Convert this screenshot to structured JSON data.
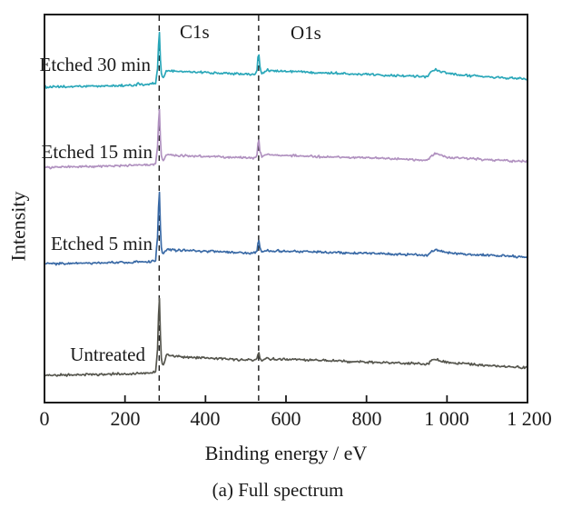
{
  "figure": {
    "caption": "(a) Full spectrum"
  },
  "chart_data": {
    "type": "line",
    "title": "",
    "xlabel": "Binding energy / eV",
    "ylabel": "Intensity",
    "xlim": [
      0,
      1200
    ],
    "ylim_relative": [
      0,
      100
    ],
    "grid": false,
    "y_ticks_shown": false,
    "x_ticks": [
      0,
      200,
      400,
      600,
      800,
      1000,
      1200
    ],
    "x_tick_labels": [
      "0",
      "200",
      "400",
      "600",
      "800",
      "1 000",
      "1 200"
    ],
    "legend_position": "inline labels left of C1s peak",
    "axis_color": "#1a1a1a",
    "marker_line_color": "#1a1a1a",
    "noise_amplitude": 0.18,
    "annotations": [
      {
        "label": "C1s",
        "x_eV": 285,
        "style": "vertical-dashed-line"
      },
      {
        "label": "O1s",
        "x_eV": 532,
        "style": "vertical-dashed-line"
      }
    ],
    "series": [
      {
        "name": "Etched 30 min",
        "color": "#2aa7b9",
        "points": [
          [
            0,
            81.3
          ],
          [
            60,
            81.4
          ],
          [
            150,
            81.6
          ],
          [
            228,
            81.8
          ],
          [
            233,
            82.4
          ],
          [
            238,
            81.9
          ],
          [
            262,
            82.1
          ],
          [
            276,
            82.3
          ],
          [
            281,
            86.0
          ],
          [
            285,
            97.2
          ],
          [
            288,
            88.0
          ],
          [
            291,
            84.2
          ],
          [
            296,
            83.6
          ],
          [
            303,
            85.6
          ],
          [
            320,
            85.4
          ],
          [
            420,
            85.0
          ],
          [
            500,
            84.6
          ],
          [
            524,
            84.5
          ],
          [
            528,
            85.8
          ],
          [
            532,
            91.0
          ],
          [
            535,
            86.6
          ],
          [
            540,
            84.9
          ],
          [
            553,
            85.7
          ],
          [
            565,
            85.5
          ],
          [
            650,
            85.2
          ],
          [
            750,
            84.8
          ],
          [
            850,
            84.4
          ],
          [
            930,
            84.1
          ],
          [
            952,
            84.0
          ],
          [
            963,
            85.5
          ],
          [
            973,
            85.8
          ],
          [
            987,
            85.2
          ],
          [
            1005,
            84.7
          ],
          [
            1060,
            84.2
          ],
          [
            1120,
            83.8
          ],
          [
            1200,
            83.4
          ]
        ]
      },
      {
        "name": "Etched 15 min",
        "color": "#b192c0",
        "points": [
          [
            0,
            60.6
          ],
          [
            150,
            60.9
          ],
          [
            262,
            61.2
          ],
          [
            276,
            61.5
          ],
          [
            281,
            66.0
          ],
          [
            285,
            77.5
          ],
          [
            288,
            68.0
          ],
          [
            291,
            62.9
          ],
          [
            296,
            62.4
          ],
          [
            303,
            63.9
          ],
          [
            320,
            63.7
          ],
          [
            420,
            63.4
          ],
          [
            500,
            63.1
          ],
          [
            524,
            63.0
          ],
          [
            528,
            64.1
          ],
          [
            532,
            68.8
          ],
          [
            535,
            64.9
          ],
          [
            540,
            63.2
          ],
          [
            553,
            64.0
          ],
          [
            565,
            63.8
          ],
          [
            650,
            63.5
          ],
          [
            750,
            63.2
          ],
          [
            850,
            62.9
          ],
          [
            930,
            62.6
          ],
          [
            952,
            62.5
          ],
          [
            963,
            63.8
          ],
          [
            973,
            64.1
          ],
          [
            987,
            63.6
          ],
          [
            1005,
            63.2
          ],
          [
            1060,
            62.8
          ],
          [
            1120,
            62.5
          ],
          [
            1200,
            62.1
          ]
        ]
      },
      {
        "name": "Etched 5 min",
        "color": "#3a6aa6",
        "points": [
          [
            0,
            35.7
          ],
          [
            150,
            36.0
          ],
          [
            262,
            36.3
          ],
          [
            276,
            36.6
          ],
          [
            281,
            43.0
          ],
          [
            285,
            56.5
          ],
          [
            288,
            45.0
          ],
          [
            291,
            38.7
          ],
          [
            296,
            38.2
          ],
          [
            303,
            39.5
          ],
          [
            320,
            39.3
          ],
          [
            420,
            38.9
          ],
          [
            500,
            38.6
          ],
          [
            524,
            38.5
          ],
          [
            528,
            39.4
          ],
          [
            532,
            42.5
          ],
          [
            535,
            39.9
          ],
          [
            540,
            38.7
          ],
          [
            553,
            39.3
          ],
          [
            565,
            39.1
          ],
          [
            650,
            38.9
          ],
          [
            750,
            38.6
          ],
          [
            850,
            38.3
          ],
          [
            930,
            38.1
          ],
          [
            952,
            38.0
          ],
          [
            963,
            39.1
          ],
          [
            973,
            39.3
          ],
          [
            987,
            38.9
          ],
          [
            1005,
            38.6
          ],
          [
            1060,
            38.2
          ],
          [
            1120,
            37.9
          ],
          [
            1200,
            37.5
          ]
        ]
      },
      {
        "name": "Untreated",
        "color": "#56564e",
        "points": [
          [
            0,
            7.0
          ],
          [
            150,
            7.3
          ],
          [
            262,
            7.6
          ],
          [
            276,
            7.9
          ],
          [
            281,
            14.0
          ],
          [
            285,
            29.3
          ],
          [
            288,
            17.0
          ],
          [
            291,
            10.0
          ],
          [
            296,
            9.6
          ],
          [
            303,
            12.3
          ],
          [
            320,
            11.9
          ],
          [
            420,
            11.4
          ],
          [
            500,
            11.0
          ],
          [
            524,
            10.9
          ],
          [
            528,
            11.4
          ],
          [
            532,
            13.2
          ],
          [
            535,
            11.7
          ],
          [
            540,
            11.0
          ],
          [
            553,
            11.4
          ],
          [
            565,
            11.2
          ],
          [
            650,
            11.0
          ],
          [
            750,
            10.6
          ],
          [
            850,
            10.3
          ],
          [
            930,
            10.0
          ],
          [
            952,
            9.9
          ],
          [
            963,
            11.0
          ],
          [
            973,
            11.2
          ],
          [
            987,
            10.7
          ],
          [
            1005,
            10.3
          ],
          [
            1060,
            9.9
          ],
          [
            1120,
            9.4
          ],
          [
            1200,
            9.0
          ]
        ]
      }
    ]
  }
}
